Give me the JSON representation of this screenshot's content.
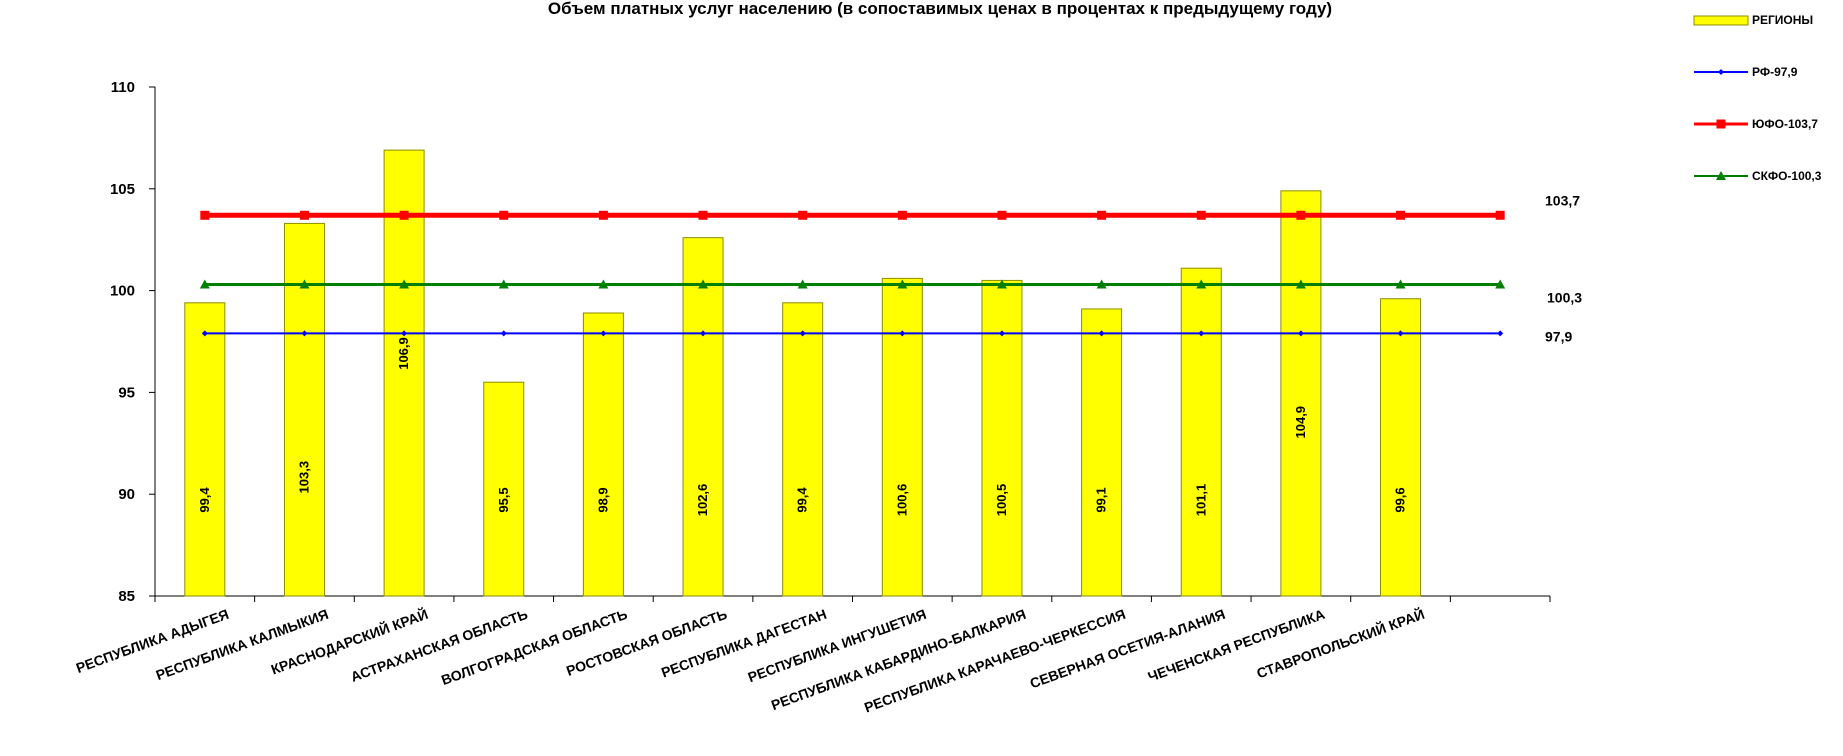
{
  "chart_data": {
    "type": "bar",
    "title": "Объем платных услуг населению (в сопоставимых ценах в процентах к предыдущему году)",
    "xlabel": "",
    "ylabel": "",
    "ylim": [
      85,
      110
    ],
    "yticks": [
      85,
      90,
      95,
      100,
      105,
      110
    ],
    "ytick_labels": [
      "85",
      "90",
      "95",
      "100",
      "105",
      "110"
    ],
    "categories": [
      "РЕСПУБЛИКА АДЫГЕЯ",
      "РЕСПУБЛИКА КАЛМЫКИЯ",
      "КРАСНОДАРСКИЙ КРАЙ",
      "АСТРАХАНСКАЯ ОБЛАСТЬ",
      "ВОЛГОГРАДСКАЯ ОБЛАСТЬ",
      "РОСТОВСКАЯ ОБЛАСТЬ",
      "РЕСПУБЛИКА ДАГЕСТАН",
      "РЕСПУБЛИКА ИНГУШЕТИЯ",
      "РЕСПУБЛИКА КАБАРДИНО-БАЛКАРИЯ",
      "РЕСПУБЛИКА КАРАЧАЕВО-ЧЕРКЕССИЯ",
      "СЕВЕРНАЯ ОСЕТИЯ-АЛАНИЯ",
      "ЧЕЧЕНСКАЯ РЕСПУБЛИКА",
      "СТАВРОПОЛЬСКИЙ КРАЙ",
      ""
    ],
    "series": [
      {
        "name": "РЕГИОНЫ",
        "kind": "bar",
        "color": "#FFFF00",
        "values": [
          99.4,
          103.3,
          106.9,
          95.5,
          98.9,
          102.6,
          99.4,
          100.6,
          100.5,
          99.1,
          101.1,
          104.9,
          99.6,
          null
        ],
        "labels": [
          "99,4",
          "103,3",
          "106,9",
          "95,5",
          "98,9",
          "102,6",
          "99,4",
          "100,6",
          "100,5",
          "99,1",
          "101,1",
          "104,9",
          "99,6",
          ""
        ]
      },
      {
        "name": "РФ-97,9",
        "kind": "line",
        "color": "#0000FF",
        "marker": "diamond",
        "value": 97.9,
        "end_label": "97,9"
      },
      {
        "name": "ЮФО-103,7",
        "kind": "line",
        "color": "#FF0000",
        "marker": "square",
        "value": 103.7,
        "end_label": "103,7"
      },
      {
        "name": "СКФО-100,3",
        "kind": "line",
        "color": "#008000",
        "marker": "triangle",
        "value": 100.3,
        "end_label": "100,3"
      }
    ],
    "grid": false,
    "legend_position": "top-right"
  }
}
